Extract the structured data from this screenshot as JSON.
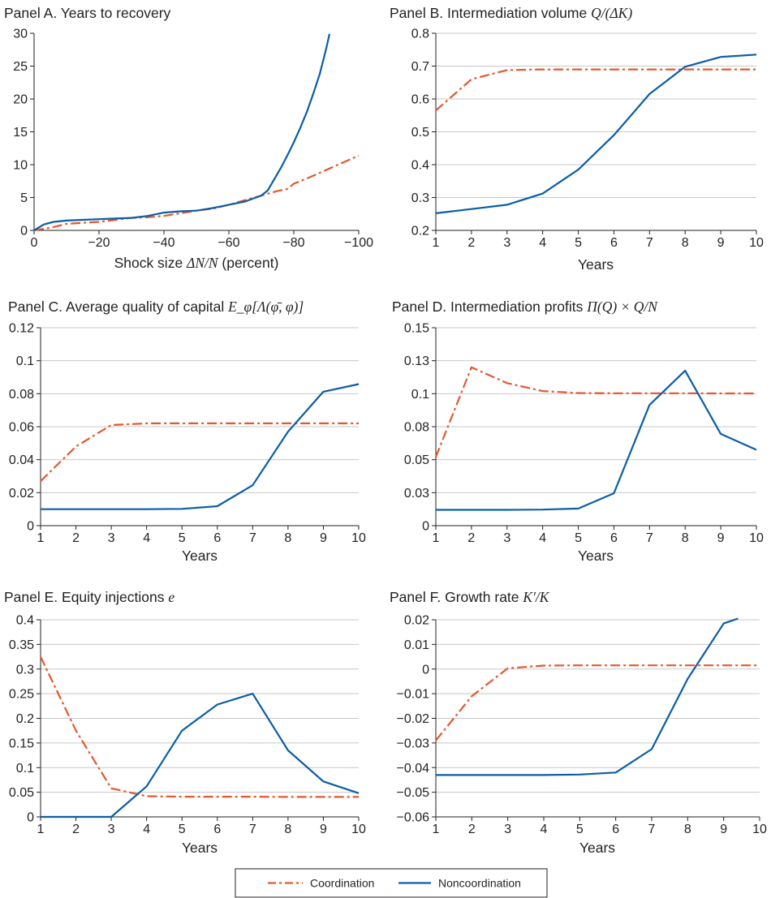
{
  "colors": {
    "coordination": "#e4572e",
    "noncoordination": "#0b5da6"
  },
  "legend": {
    "items": [
      {
        "name": "Coordination",
        "style": "dash-dot",
        "color": "#e4572e"
      },
      {
        "name": "Noncoordination",
        "style": "solid",
        "color": "#0b5da6"
      }
    ],
    "placement": "bottom-center"
  },
  "chart_data": [
    {
      "id": "A",
      "type": "line",
      "title_text": "Panel A. Years to recovery",
      "title_math": "",
      "xlabel_text": "Shock size ",
      "xlabel_math": "ΔN/N",
      "xlabel_suffix": " (percent)",
      "xticks": [
        0,
        -20,
        -40,
        -60,
        -80,
        -100
      ],
      "xtick_labels": [
        "0",
        "−20",
        "−40",
        "−60",
        "−80",
        "−100"
      ],
      "xlim": [
        0,
        -100
      ],
      "yticks": [
        0,
        5,
        10,
        15,
        20,
        25,
        30
      ],
      "ytick_labels": [
        "0",
        "5",
        "10",
        "15",
        "20",
        "25",
        "30"
      ],
      "ylim": [
        0,
        30
      ],
      "grid": false,
      "series": [
        {
          "name": "Coordination",
          "x": [
            0,
            -5,
            -10,
            -20,
            -25,
            -30,
            -35,
            -40,
            -45,
            -50,
            -55,
            -60,
            -65,
            -70,
            -75,
            -78,
            -80,
            -85,
            -90,
            -95,
            -100
          ],
          "y": [
            0,
            0.4,
            1.0,
            1.3,
            1.6,
            1.9,
            2.0,
            2.2,
            2.6,
            3.0,
            3.3,
            3.9,
            4.6,
            5.3,
            6.0,
            6.3,
            7.1,
            8.1,
            9.2,
            10.3,
            11.4
          ]
        },
        {
          "name": "Noncoordination",
          "x": [
            0,
            -3,
            -6,
            -10,
            -15,
            -20,
            -25,
            -30,
            -35,
            -40,
            -45,
            -50,
            -55,
            -60,
            -65,
            -70,
            -72,
            -74,
            -76,
            -78,
            -80,
            -82,
            -84,
            -86,
            -88,
            -90,
            -91
          ],
          "y": [
            0,
            0.9,
            1.3,
            1.5,
            1.6,
            1.7,
            1.8,
            1.9,
            2.2,
            2.7,
            2.9,
            3.0,
            3.4,
            3.9,
            4.4,
            5.3,
            6.1,
            7.8,
            9.5,
            11.4,
            13.4,
            15.6,
            18.0,
            20.8,
            23.8,
            27.7,
            29.9
          ]
        }
      ]
    },
    {
      "id": "B",
      "type": "line",
      "title_text": "Panel B. Intermediation volume ",
      "title_math": "Q/(ΔK)",
      "xlabel_text": "Years",
      "xlabel_math": "",
      "xlabel_suffix": "",
      "xticks": [
        1,
        2,
        3,
        4,
        5,
        6,
        7,
        8,
        9,
        10
      ],
      "xtick_labels": [
        "1",
        "2",
        "3",
        "4",
        "5",
        "6",
        "7",
        "8",
        "9",
        "10"
      ],
      "xlim": [
        1,
        10
      ],
      "yticks": [
        0.2,
        0.3,
        0.4,
        0.5,
        0.6,
        0.7,
        0.8
      ],
      "ytick_labels": [
        "0.2",
        "0.3",
        "0.4",
        "0.5",
        "0.6",
        "0.7",
        "0.8"
      ],
      "ylim": [
        0.2,
        0.8
      ],
      "grid": true,
      "series": [
        {
          "name": "Coordination",
          "x": [
            1,
            2,
            3,
            4,
            5,
            6,
            7,
            8,
            9,
            10
          ],
          "y": [
            0.565,
            0.66,
            0.688,
            0.69,
            0.69,
            0.69,
            0.69,
            0.69,
            0.69,
            0.69
          ]
        },
        {
          "name": "Noncoordination",
          "x": [
            1,
            2,
            3,
            4,
            5,
            6,
            7,
            8,
            9,
            10
          ],
          "y": [
            0.252,
            0.265,
            0.278,
            0.312,
            0.385,
            0.49,
            0.615,
            0.698,
            0.728,
            0.735
          ]
        }
      ]
    },
    {
      "id": "C",
      "type": "line",
      "title_text": "Panel C. Average quality of capital ",
      "title_math": "E_φ[Λ(φ̄, φ)]",
      "xlabel_text": "Years",
      "xlabel_math": "",
      "xlabel_suffix": "",
      "xticks": [
        1,
        2,
        3,
        4,
        5,
        6,
        7,
        8,
        9,
        10
      ],
      "xtick_labels": [
        "1",
        "2",
        "3",
        "4",
        "5",
        "6",
        "7",
        "8",
        "9",
        "10"
      ],
      "xlim": [
        1,
        10
      ],
      "yticks": [
        0,
        0.02,
        0.04,
        0.06,
        0.08,
        0.1,
        0.12
      ],
      "ytick_labels": [
        "0",
        "0.02",
        "0.04",
        "0.06",
        "0.08",
        "0.1",
        "0.12"
      ],
      "ylim": [
        0,
        0.12
      ],
      "grid": true,
      "series": [
        {
          "name": "Coordination",
          "x": [
            1,
            2,
            3,
            4,
            5,
            6,
            7,
            8,
            9,
            10
          ],
          "y": [
            0.027,
            0.048,
            0.061,
            0.062,
            0.062,
            0.062,
            0.062,
            0.062,
            0.062,
            0.062
          ]
        },
        {
          "name": "Noncoordination",
          "x": [
            1,
            2,
            3,
            4,
            5,
            6,
            7,
            8,
            9,
            10
          ],
          "y": [
            0.01,
            0.01,
            0.01,
            0.01,
            0.0102,
            0.0118,
            0.0245,
            0.057,
            0.0812,
            0.0858
          ]
        }
      ]
    },
    {
      "id": "D",
      "type": "line",
      "title_text": "Panel D. Intermediation profits ",
      "title_math": "Π(Q) × Q/N",
      "xlabel_text": "Years",
      "xlabel_math": "",
      "xlabel_suffix": "",
      "xticks": [
        1,
        2,
        3,
        4,
        5,
        6,
        7,
        8,
        9,
        10
      ],
      "xtick_labels": [
        "1",
        "2",
        "3",
        "4",
        "5",
        "6",
        "7",
        "8",
        "9",
        "10"
      ],
      "xlim": [
        1,
        10
      ],
      "yticks": [
        0,
        0.025,
        0.05,
        0.075,
        0.1,
        0.125,
        0.15
      ],
      "ytick_labels": [
        "0",
        "0.03",
        "0.05",
        "0.08",
        "0.1",
        "0.13",
        "0.15"
      ],
      "ylim": [
        0,
        0.15
      ],
      "grid": true,
      "series": [
        {
          "name": "Coordination",
          "x": [
            1,
            2,
            3,
            4,
            5,
            6,
            7,
            8,
            9,
            10
          ],
          "y": [
            0.052,
            0.12,
            0.108,
            0.102,
            0.1005,
            0.1003,
            0.1003,
            0.1003,
            0.1002,
            0.1002
          ]
        },
        {
          "name": "Noncoordination",
          "x": [
            1,
            2,
            3,
            4,
            5,
            6,
            7,
            8,
            9,
            10
          ],
          "y": [
            0.012,
            0.012,
            0.012,
            0.0122,
            0.013,
            0.0245,
            0.0915,
            0.1175,
            0.0695,
            0.0575
          ]
        }
      ]
    },
    {
      "id": "E",
      "type": "line",
      "title_text": "Panel E. Equity injections ",
      "title_math": "e",
      "xlabel_text": "Years",
      "xlabel_math": "",
      "xlabel_suffix": "",
      "xticks": [
        1,
        2,
        3,
        4,
        5,
        6,
        7,
        8,
        9,
        10
      ],
      "xtick_labels": [
        "1",
        "2",
        "3",
        "4",
        "5",
        "6",
        "7",
        "8",
        "9",
        "10"
      ],
      "xlim": [
        1,
        10
      ],
      "yticks": [
        0,
        0.05,
        0.1,
        0.15,
        0.2,
        0.25,
        0.3,
        0.35,
        0.4
      ],
      "ytick_labels": [
        "0",
        "0.05",
        "0.1",
        "0.15",
        "0.2",
        "0.25",
        "0.3",
        "0.35",
        "0.4"
      ],
      "ylim": [
        0,
        0.4
      ],
      "grid": true,
      "series": [
        {
          "name": "Coordination",
          "x": [
            1,
            2,
            3,
            4,
            5,
            6,
            7,
            8,
            9,
            10
          ],
          "y": [
            0.325,
            0.175,
            0.058,
            0.042,
            0.041,
            0.041,
            0.041,
            0.0405,
            0.0405,
            0.0405
          ]
        },
        {
          "name": "Noncoordination",
          "x": [
            1,
            2,
            3,
            4,
            5,
            6,
            7,
            8,
            9,
            10
          ],
          "y": [
            0,
            0,
            0,
            0.062,
            0.175,
            0.228,
            0.25,
            0.135,
            0.072,
            0.048
          ]
        }
      ]
    },
    {
      "id": "F",
      "type": "line",
      "title_text": "Panel F. Growth rate ",
      "title_math": "K′/K",
      "xlabel_text": "Years",
      "xlabel_math": "",
      "xlabel_suffix": "",
      "xticks": [
        1,
        2,
        3,
        4,
        5,
        6,
        7,
        8,
        9,
        10
      ],
      "xtick_labels": [
        "1",
        "2",
        "3",
        "4",
        "5",
        "6",
        "7",
        "8",
        "9",
        "10"
      ],
      "xlim": [
        1,
        10
      ],
      "yticks": [
        -0.06,
        -0.05,
        -0.04,
        -0.03,
        -0.02,
        -0.01,
        0,
        0.01,
        0.02
      ],
      "ytick_labels": [
        "−0.06",
        "−0.05",
        "−0.04",
        "−0.03",
        "−0.02",
        "−0.01",
        "0",
        "0.01",
        "0.02"
      ],
      "ylim": [
        -0.06,
        0.02
      ],
      "grid": true,
      "series": [
        {
          "name": "Coordination",
          "x": [
            1,
            2,
            3,
            4,
            5,
            6,
            7,
            8,
            9,
            10
          ],
          "y": [
            -0.029,
            -0.011,
            0.0003,
            0.0014,
            0.0015,
            0.0015,
            0.0015,
            0.0015,
            0.0015,
            0.0015
          ]
        },
        {
          "name": "Noncoordination",
          "x": [
            1,
            2,
            3,
            4,
            5,
            6,
            7,
            8,
            9,
            9.4
          ],
          "y": [
            -0.043,
            -0.043,
            -0.043,
            -0.043,
            -0.0428,
            -0.042,
            -0.0325,
            -0.004,
            0.0185,
            0.0205
          ]
        }
      ]
    }
  ]
}
